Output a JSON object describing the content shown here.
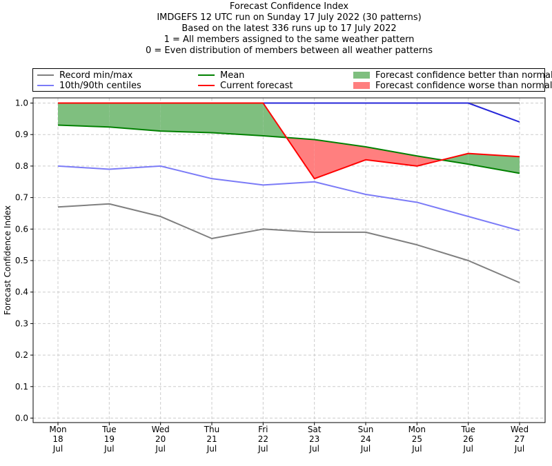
{
  "title_lines": [
    "Forecast Confidence Index",
    "IMDGEFS 12 UTC run on Sunday 17 July 2022 (30 patterns)",
    "Based on the latest 336 runs up to 17 July 2022",
    "1 = All members assigned to the same weather pattern",
    "0 = Even distribution of members between all weather patterns"
  ],
  "legend": {
    "record": "Record min/max",
    "centiles": "10th/90th centiles",
    "mean": "Mean",
    "current": "Current forecast",
    "better": "Forecast confidence better than normal",
    "worse": "Forecast confidence worse than normal"
  },
  "colors": {
    "record": "#7f7f7f",
    "centiles": "#7b7bf7",
    "max": "#2626d9",
    "mean": "#008000",
    "current": "#ff0000",
    "better": "#7fbf7f",
    "worse": "#ff7f7f",
    "grid": "#cccccc"
  },
  "chart_data": {
    "type": "line",
    "title": "Forecast Confidence Index",
    "ylabel": "Forecast Confidence Index",
    "xlabel": "",
    "ylim": [
      0,
      1
    ],
    "yticks": [
      0.0,
      0.1,
      0.2,
      0.3,
      0.4,
      0.5,
      0.6,
      0.7,
      0.8,
      0.9,
      1.0
    ],
    "ytick_labels": [
      "0.0",
      "0.1",
      "0.2",
      "0.3",
      "0.4",
      "0.5",
      "0.6",
      "0.7",
      "0.8",
      "0.9",
      "1.0"
    ],
    "grid": true,
    "categories": [
      [
        "Mon",
        "18",
        "Jul"
      ],
      [
        "Tue",
        "19",
        "Jul"
      ],
      [
        "Wed",
        "20",
        "Jul"
      ],
      [
        "Thu",
        "21",
        "Jul"
      ],
      [
        "Fri",
        "22",
        "Jul"
      ],
      [
        "Sat",
        "23",
        "Jul"
      ],
      [
        "Sun",
        "24",
        "Jul"
      ],
      [
        "Mon",
        "25",
        "Jul"
      ],
      [
        "Tue",
        "26",
        "Jul"
      ],
      [
        "Wed",
        "27",
        "Jul"
      ]
    ],
    "series": [
      {
        "name": "Record max",
        "key": "record",
        "values": [
          1.0,
          1.0,
          1.0,
          1.0,
          1.0,
          1.0,
          1.0,
          1.0,
          1.0,
          1.0
        ]
      },
      {
        "name": "Record min",
        "key": "record",
        "values": [
          0.67,
          0.68,
          0.64,
          0.57,
          0.6,
          0.59,
          0.59,
          0.55,
          0.5,
          0.43
        ]
      },
      {
        "name": "90th centile",
        "key": "centiles",
        "values": [
          1.0,
          1.0,
          1.0,
          1.0,
          1.0,
          1.0,
          1.0,
          1.0,
          1.0,
          0.94
        ]
      },
      {
        "name": "10th centile",
        "key": "centiles",
        "values": [
          0.8,
          0.79,
          0.8,
          0.76,
          0.74,
          0.75,
          0.71,
          0.685,
          0.64,
          0.595
        ]
      },
      {
        "name": "Mean",
        "key": "mean",
        "values": [
          0.93,
          0.924,
          0.911,
          0.906,
          0.896,
          0.884,
          0.861,
          0.832,
          0.806,
          0.777
        ]
      },
      {
        "name": "Current forecast",
        "key": "current",
        "values": [
          1.0,
          1.0,
          1.0,
          1.0,
          1.0,
          0.76,
          0.82,
          0.8,
          0.84,
          0.83
        ]
      }
    ]
  }
}
